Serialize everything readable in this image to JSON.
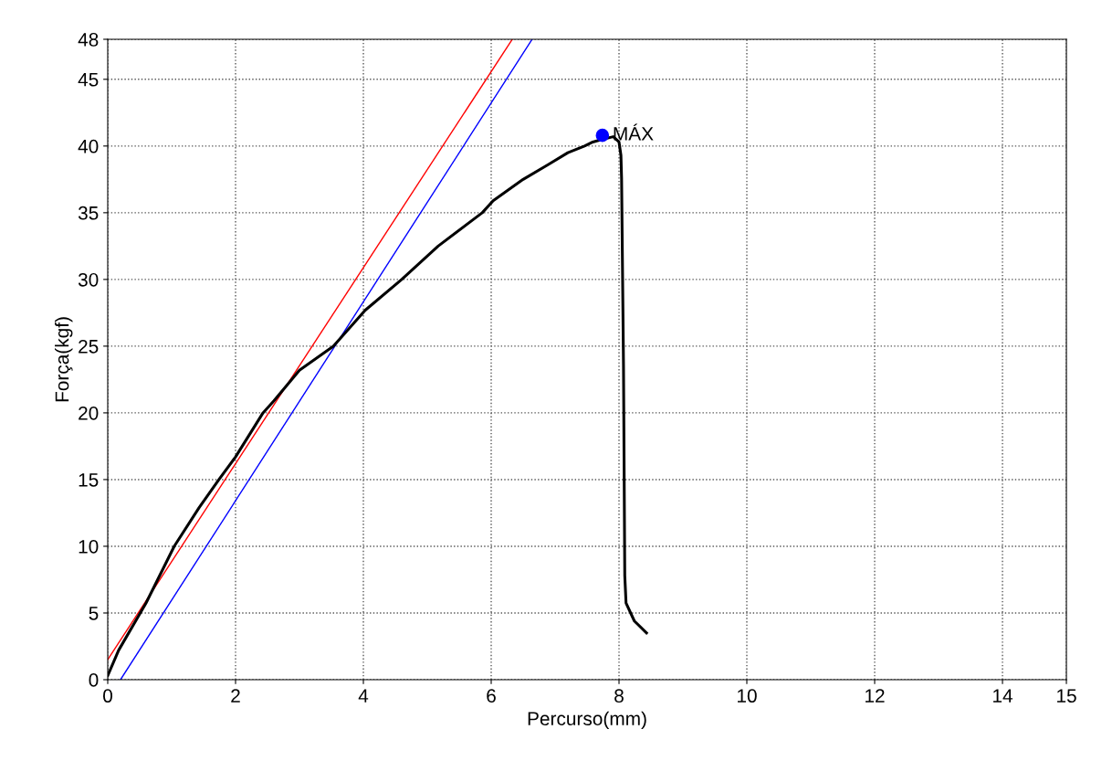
{
  "chart_data": {
    "type": "line",
    "xlabel": "Percurso(mm)",
    "ylabel": "Força(kgf)",
    "xlim": [
      0,
      15
    ],
    "xticks": [
      0,
      2,
      4,
      6,
      8,
      10,
      12,
      14,
      15
    ],
    "ylim": [
      0,
      48
    ],
    "yticks": [
      0,
      5,
      10,
      15,
      20,
      25,
      30,
      35,
      40,
      45,
      48
    ],
    "grid": true,
    "line_style": "solid",
    "series": [
      {
        "color": "#ff0000",
        "x": [
          0,
          6.33
        ],
        "values": [
          1.5,
          48
        ]
      },
      {
        "color": "#0000ff",
        "x": [
          0.2,
          6.64
        ],
        "values": [
          0,
          48
        ]
      },
      {
        "color": "#000000",
        "x": [
          0,
          0.17,
          0.6,
          1.04,
          1.43,
          1.74,
          2.0,
          2.43,
          2.6,
          3.0,
          3.53,
          4.03,
          4.6,
          5.17,
          5.86,
          6.03,
          6.5,
          6.89,
          7.2,
          7.46,
          7.59,
          7.74,
          7.91,
          8.0,
          8.03,
          8.04,
          8.07,
          8.09,
          8.11,
          8.24,
          8.43
        ],
        "values": [
          0.3,
          2.2,
          5.75,
          10,
          12.9,
          15,
          16.7,
          20,
          20.9,
          23.2,
          25,
          27.7,
          30,
          32.5,
          35,
          35.9,
          37.5,
          38.6,
          39.5,
          40.0,
          40.3,
          40.5,
          40.7,
          40.3,
          39.3,
          37.6,
          23.6,
          7.8,
          5.75,
          4.4,
          3.5
        ]
      },
      {
        "type": "scatter",
        "color": "#0000ff",
        "marker": "circle",
        "x": [
          7.74
        ],
        "values": [
          40.8
        ]
      }
    ],
    "annotations": [
      {
        "text": "MÁX",
        "x": 7.74,
        "y": 40.8
      }
    ]
  }
}
